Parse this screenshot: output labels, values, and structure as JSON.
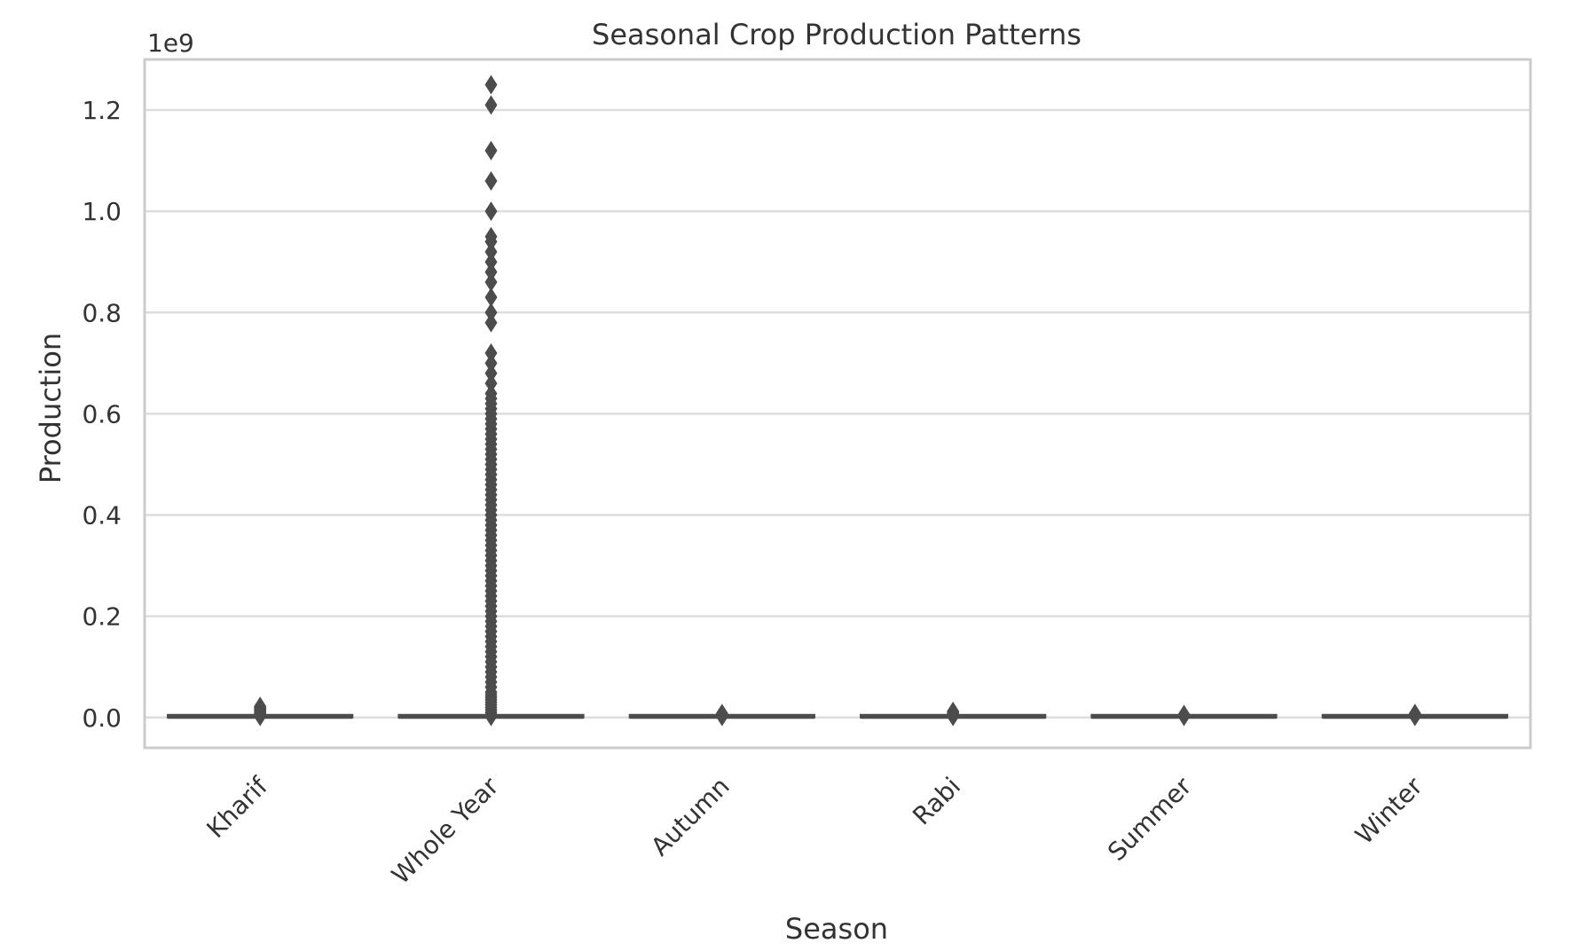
{
  "chart_data": {
    "type": "box",
    "title": "Seasonal Crop Production Patterns",
    "xlabel": "Season",
    "ylabel": "Production",
    "y_offset_label": "1e9",
    "y_scale": 1000000000,
    "ylim": [
      -0.06,
      1.3
    ],
    "yticks": [
      0.0,
      0.2,
      0.4,
      0.6,
      0.8,
      1.0,
      1.2
    ],
    "ytick_labels": [
      "0.0",
      "0.2",
      "0.4",
      "0.6",
      "0.8",
      "1.0",
      "1.2"
    ],
    "grid": "horizontal",
    "categories": [
      "Kharif",
      "Whole Year",
      "Autumn",
      "Rabi",
      "Summer",
      "Winter"
    ],
    "boxes": [
      {
        "category": "Kharif",
        "q1": 0.0,
        "median": 0.0,
        "q3": 0.0005,
        "whisker_low": 0.0,
        "whisker_high": 0.001,
        "outliers": [
          0.002,
          0.004,
          0.006,
          0.008,
          0.01,
          0.012,
          0.014,
          0.016,
          0.018,
          0.02,
          0.022
        ]
      },
      {
        "category": "Whole Year",
        "q1": 0.0,
        "median": 0.0,
        "q3": 0.0005,
        "whisker_low": 0.0,
        "whisker_high": 0.001,
        "outliers": [
          0.002,
          0.006,
          0.01,
          0.015,
          0.02,
          0.025,
          0.03,
          0.035,
          0.04,
          0.045,
          0.05,
          0.06,
          0.07,
          0.08,
          0.09,
          0.1,
          0.11,
          0.12,
          0.13,
          0.14,
          0.15,
          0.16,
          0.17,
          0.18,
          0.19,
          0.2,
          0.21,
          0.22,
          0.23,
          0.24,
          0.25,
          0.26,
          0.27,
          0.28,
          0.29,
          0.3,
          0.31,
          0.32,
          0.33,
          0.34,
          0.35,
          0.36,
          0.37,
          0.38,
          0.39,
          0.4,
          0.41,
          0.42,
          0.43,
          0.44,
          0.45,
          0.46,
          0.47,
          0.48,
          0.49,
          0.5,
          0.51,
          0.52,
          0.53,
          0.54,
          0.55,
          0.56,
          0.57,
          0.58,
          0.59,
          0.6,
          0.61,
          0.62,
          0.63,
          0.64,
          0.66,
          0.68,
          0.7,
          0.72,
          0.78,
          0.8,
          0.83,
          0.86,
          0.88,
          0.9,
          0.92,
          0.94,
          0.95,
          1.0,
          1.06,
          1.12,
          1.21,
          1.25
        ]
      },
      {
        "category": "Autumn",
        "q1": 0.0,
        "median": 0.0,
        "q3": 0.0005,
        "whisker_low": 0.0,
        "whisker_high": 0.001,
        "outliers": [
          0.002,
          0.004,
          0.006,
          0.008
        ]
      },
      {
        "category": "Rabi",
        "q1": 0.0,
        "median": 0.0,
        "q3": 0.0005,
        "whisker_low": 0.0,
        "whisker_high": 0.001,
        "outliers": [
          0.002,
          0.004,
          0.006,
          0.008,
          0.01,
          0.012
        ]
      },
      {
        "category": "Summer",
        "q1": 0.0,
        "median": 0.0,
        "q3": 0.0005,
        "whisker_low": 0.0,
        "whisker_high": 0.001,
        "outliers": [
          0.002,
          0.004,
          0.006
        ]
      },
      {
        "category": "Winter",
        "q1": 0.0,
        "median": 0.0,
        "q3": 0.0005,
        "whisker_low": 0.0,
        "whisker_high": 0.001,
        "outliers": [
          0.002,
          0.004,
          0.006,
          0.008
        ]
      }
    ],
    "colors": {
      "box": "#4c4c4c",
      "grid": "#dddddd",
      "frame": "#cccccc",
      "text": "#333333"
    }
  }
}
